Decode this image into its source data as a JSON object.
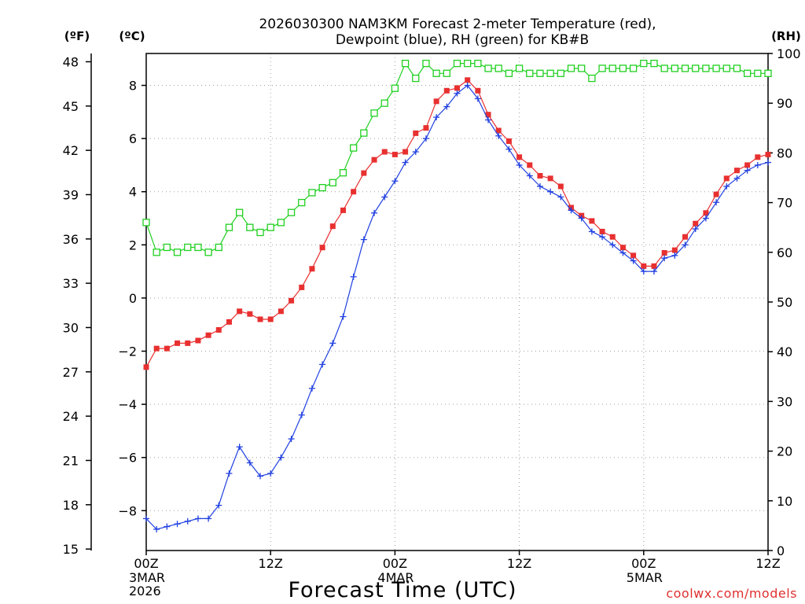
{
  "chart_data": {
    "type": "line",
    "title_line1": "2026030300 NAM3KM Forecast 2-meter Temperature (red),",
    "title_line2": "Dewpoint (blue), RH (green) for KB#B",
    "xlabel": "Forecast Time (UTC)",
    "credit": "coolwx.com/models",
    "units": {
      "left_outer": "(ºF)",
      "left_inner": "(ºC)",
      "right": "(RH)"
    },
    "x_range_hours": [
      0,
      60
    ],
    "c_range": [
      -9.5,
      9.2
    ],
    "rh_range": [
      0,
      100
    ],
    "x_ticks": [
      {
        "hour": 0,
        "label": "00Z",
        "sub1": "3MAR",
        "sub2": "2026"
      },
      {
        "hour": 12,
        "label": "12Z",
        "sub1": "",
        "sub2": ""
      },
      {
        "hour": 24,
        "label": "00Z",
        "sub1": "4MAR",
        "sub2": ""
      },
      {
        "hour": 36,
        "label": "12Z",
        "sub1": "",
        "sub2": ""
      },
      {
        "hour": 48,
        "label": "00Z",
        "sub1": "5MAR",
        "sub2": ""
      },
      {
        "hour": 60,
        "label": "12Z",
        "sub1": "",
        "sub2": ""
      }
    ],
    "c_ticks": [
      -8,
      -6,
      -4,
      -2,
      0,
      2,
      4,
      6,
      8
    ],
    "f_ticks": [
      15,
      18,
      21,
      24,
      27,
      30,
      33,
      36,
      39,
      42,
      45,
      48
    ],
    "rh_ticks": [
      0,
      10,
      20,
      30,
      40,
      50,
      60,
      70,
      80,
      90,
      100
    ],
    "colors": {
      "temp": "#e83030",
      "dew": "#2040e0",
      "rh": "#20d020",
      "grid": "#a0a0a0"
    },
    "series": [
      {
        "name": "Temperature (C)",
        "values": [
          -2.6,
          -1.9,
          -1.9,
          -1.7,
          -1.7,
          -1.6,
          -1.4,
          -1.2,
          -0.9,
          -0.5,
          -0.6,
          -0.8,
          -0.8,
          -0.5,
          -0.1,
          0.4,
          1.1,
          1.9,
          2.7,
          3.3,
          4.0,
          4.7,
          5.2,
          5.5,
          5.4,
          5.5,
          6.2,
          6.4,
          7.4,
          7.8,
          7.9,
          8.2,
          7.8,
          6.9,
          6.3,
          5.9,
          5.3,
          5.0,
          4.6,
          4.5,
          4.2,
          3.4,
          3.1,
          2.9,
          2.5,
          2.3,
          1.9,
          1.6,
          1.2,
          1.2,
          1.7,
          1.8,
          2.3,
          2.8,
          3.2,
          3.9,
          4.5,
          4.8,
          5.0,
          5.3,
          5.4
        ]
      },
      {
        "name": "Dewpoint (C)",
        "values": [
          -8.3,
          -8.7,
          -8.6,
          -8.5,
          -8.4,
          -8.3,
          -8.3,
          -7.8,
          -6.6,
          -5.6,
          -6.2,
          -6.7,
          -6.6,
          -6.0,
          -5.3,
          -4.4,
          -3.4,
          -2.5,
          -1.7,
          -0.7,
          0.8,
          2.2,
          3.2,
          3.8,
          4.4,
          5.1,
          5.5,
          6.0,
          6.8,
          7.2,
          7.7,
          8.0,
          7.5,
          6.7,
          6.1,
          5.6,
          5.0,
          4.6,
          4.2,
          4.0,
          3.8,
          3.3,
          3.0,
          2.5,
          2.3,
          2.0,
          1.7,
          1.4,
          1.0,
          1.0,
          1.5,
          1.6,
          2.0,
          2.6,
          3.0,
          3.6,
          4.2,
          4.5,
          4.8,
          5.0,
          5.1
        ]
      },
      {
        "name": "RH (%)",
        "values": [
          66,
          60,
          61,
          60,
          61,
          61,
          60,
          61,
          65,
          68,
          65,
          64,
          65,
          66,
          68,
          70,
          72,
          73,
          74,
          76,
          81,
          84,
          88,
          90,
          93,
          98,
          95,
          98,
          96,
          96,
          98,
          98,
          98,
          97,
          97,
          96,
          97,
          96,
          96,
          96,
          96,
          97,
          97,
          95,
          97,
          97,
          97,
          97,
          98,
          98,
          97,
          97,
          97,
          97,
          97,
          97,
          97,
          97,
          96,
          96,
          96
        ]
      }
    ]
  }
}
